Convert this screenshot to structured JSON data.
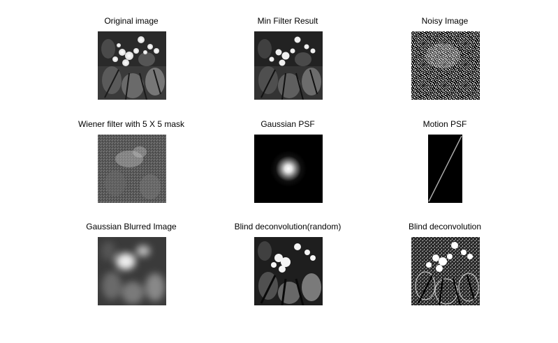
{
  "figure": {
    "background": "#ffffff",
    "panels": [
      {
        "title": "Original image",
        "content": "grayscale flower photo"
      },
      {
        "title": "Min Filter Result",
        "content": "grayscale flower photo after min filter"
      },
      {
        "title": "Noisy Image",
        "content": "salt and pepper noise image"
      },
      {
        "title": "Wiener filter with 5 X 5 mask",
        "content": "wiener filtered noisy image"
      },
      {
        "title": "Gaussian PSF",
        "content": "gaussian point spread function"
      },
      {
        "title": "Motion PSF",
        "content": "motion point spread function"
      },
      {
        "title": "Gaussian Blurred Image",
        "content": "blurred photo"
      },
      {
        "title": "Blind deconvolution(random)",
        "content": "deconvolved photo"
      },
      {
        "title": "Blind deconvolution",
        "content": "deconvolved photo, sharpened"
      }
    ]
  }
}
